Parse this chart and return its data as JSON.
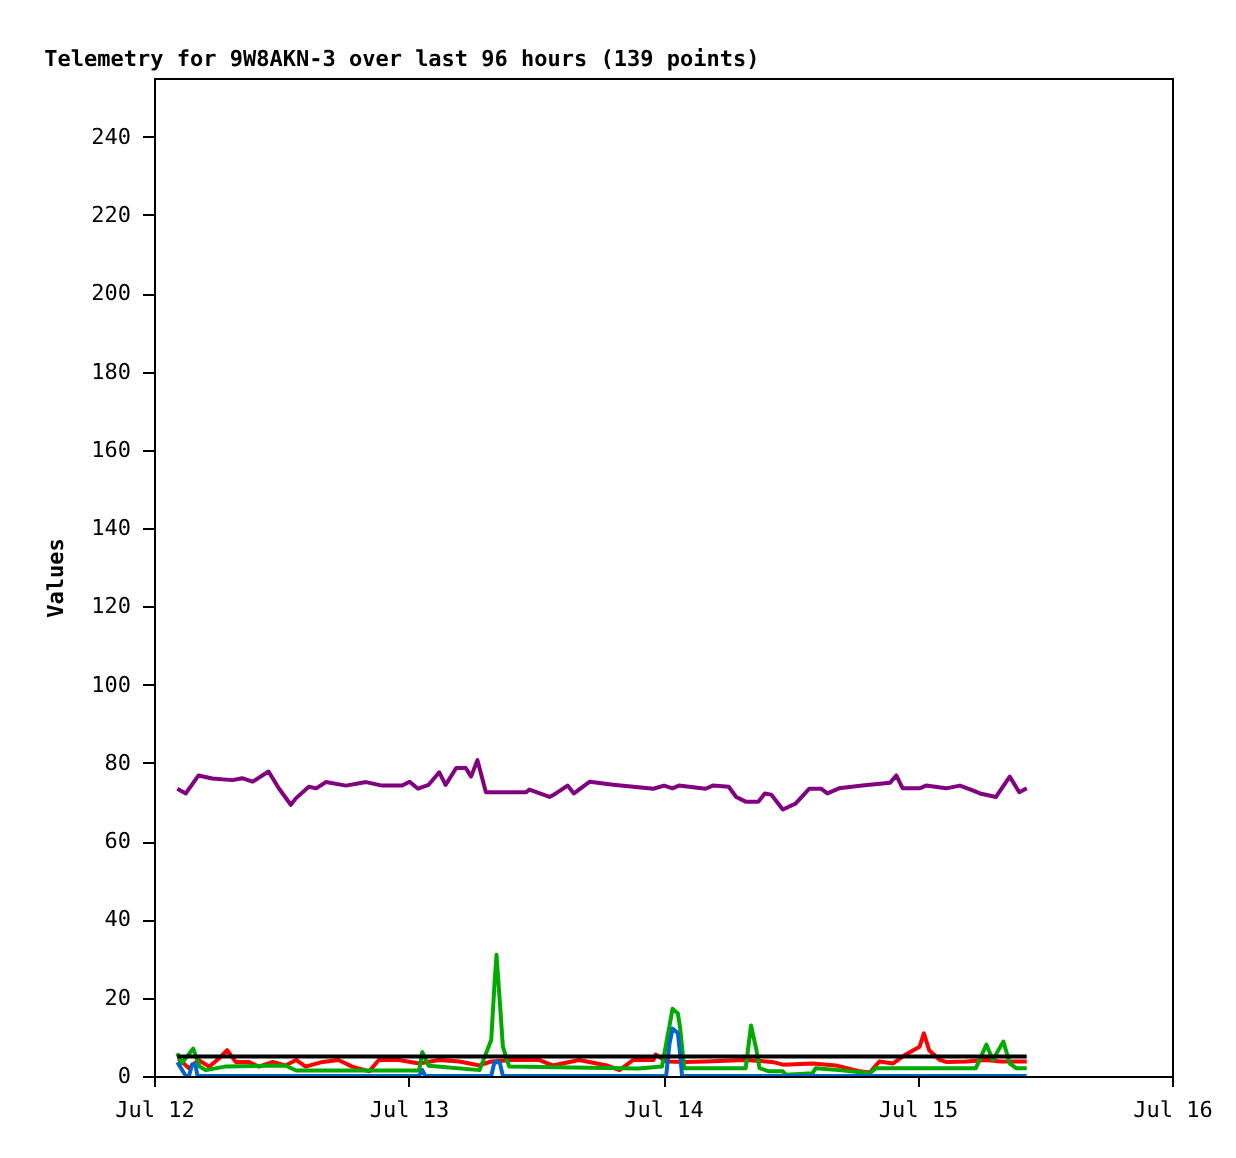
{
  "chart_data": {
    "type": "line",
    "title": "Telemetry for 9W8AKN-3 over last 96 hours (139 points)",
    "ylabel": "Values",
    "xlim": [
      "--07-12",
      "--07-16"
    ],
    "xticks": [
      {
        "value": "--07-12",
        "label": "Jul 12"
      },
      {
        "value": "--07-13",
        "label": "Jul 13"
      },
      {
        "value": "--07-14",
        "label": "Jul 14"
      },
      {
        "value": "--07-15",
        "label": "Jul 15"
      },
      {
        "value": "--07-16",
        "label": "Jul 16"
      }
    ],
    "ylim": [
      0,
      255
    ],
    "yticks": [
      0,
      20,
      40,
      60,
      80,
      100,
      120,
      140,
      160,
      180,
      200,
      220,
      240
    ],
    "series": [
      {
        "color": "#800080",
        "x": [
          "--07-12T02:12",
          "--07-12T03:00",
          "--07-12T04:12",
          "--07-12T05:30",
          "--07-12T07:24",
          "--07-12T08:18",
          "--07-12T09:18",
          "--07-12T10:48",
          "--07-12T11:48",
          "--07-12T12:54",
          "--07-12T13:24",
          "--07-12T14:36",
          "--07-12T15:18",
          "--07-12T16:12",
          "--07-12T18:06",
          "--07-12T20:00",
          "--07-12T21:30",
          "--07-12T23:24",
          "--07-13T00:06",
          "--07-13T00:54",
          "--07-13T01:54",
          "--07-13T02:54",
          "--07-13T03:30",
          "--07-13T04:30",
          "--07-13T05:24",
          "--07-13T05:54",
          "--07-13T06:30",
          "--07-13T07:18",
          "--07-13T11:06",
          "--07-13T11:24",
          "--07-13T13:18",
          "--07-13T13:54",
          "--07-13T15:00",
          "--07-13T15:36",
          "--07-13T17:06",
          "--07-13T19:18",
          "--07-13T21:12",
          "--07-13T23:06",
          "--07-14T00:06",
          "--07-14T00:54",
          "--07-14T01:30",
          "--07-14T04:00",
          "--07-14T04:42",
          "--07-14T06:12",
          "--07-14T06:54",
          "--07-14T07:48",
          "--07-14T09:00",
          "--07-14T09:36",
          "--07-14T10:12",
          "--07-14T11:18",
          "--07-14T12:30",
          "--07-14T13:48",
          "--07-14T14:54",
          "--07-14T15:30",
          "--07-14T16:36",
          "--07-14T18:48",
          "--07-14T21:24",
          "--07-14T22:00",
          "--07-14T22:36",
          "--07-15T00:12",
          "--07-15T00:48",
          "--07-15T02:42",
          "--07-15T04:00",
          "--07-15T05:12",
          "--07-15T05:54",
          "--07-15T07:24",
          "--07-15T08:42",
          "--07-15T09:36",
          "--07-15T10:18"
        ],
        "values": [
          73.4,
          72.2,
          76.8,
          76,
          75.6,
          76.1,
          75.2,
          77.8,
          73.4,
          69.3,
          71,
          73.9,
          73.5,
          75.1,
          74.2,
          75.1,
          74.2,
          74.2,
          75.2,
          73.4,
          74.4,
          77.6,
          74.4,
          78.7,
          78.7,
          76.5,
          80.7,
          72.5,
          72.5,
          73.2,
          71.3,
          72.2,
          74.2,
          72.2,
          75.2,
          74.4,
          73.9,
          73.4,
          74.2,
          73.5,
          74.2,
          73.4,
          74.2,
          73.9,
          71.3,
          70.1,
          70.1,
          72.2,
          71.9,
          68.1,
          69.6,
          73.4,
          73.4,
          72.2,
          73.5,
          74.2,
          74.9,
          76.8,
          73.5,
          73.5,
          74.2,
          73.5,
          74.2,
          73,
          72.2,
          71.3,
          76.5,
          72.5,
          73.5
        ]
      },
      {
        "color": "#ff0000",
        "x": [
          "--07-12T02:18",
          "--07-12T03:18",
          "--07-12T04:12",
          "--07-12T05:12",
          "--07-12T06:06",
          "--07-12T06:54",
          "--07-12T07:42",
          "--07-12T08:54",
          "--07-12T09:54",
          "--07-12T11:12",
          "--07-12T12:24",
          "--07-12T13:24",
          "--07-12T14:18",
          "--07-12T15:54",
          "--07-12T17:24",
          "--07-12T18:42",
          "--07-12T20:18",
          "--07-12T21:12",
          "--07-12T23:06",
          "--07-13T01:00",
          "--07-13T02:54",
          "--07-13T04:48",
          "--07-13T06:42",
          "--07-13T07:48",
          "--07-13T09:48",
          "--07-13T12:18",
          "--07-13T13:36",
          "--07-13T16:06",
          "--07-13T18:42",
          "--07-13T19:54",
          "--07-13T21:12",
          "--07-13T23:06",
          "--07-13T23:18",
          "--07-14T00:18",
          "--07-14T02:06",
          "--07-14T04:00",
          "--07-14T07:48",
          "--07-14T10:18",
          "--07-14T11:18",
          "--07-14T14:06",
          "--07-14T16:18",
          "--07-14T18:30",
          "--07-14T19:30",
          "--07-14T20:24",
          "--07-14T21:42",
          "--07-14T22:54",
          "--07-15T00:12",
          "--07-15T00:36",
          "--07-15T01:06",
          "--07-15T02:06",
          "--07-15T02:42",
          "--07-15T04:36",
          "--07-15T06:30",
          "--07-15T07:48",
          "--07-15T10:18"
        ],
        "values": [
          4.4,
          2.0,
          4.1,
          2.4,
          4.4,
          6.6,
          3.6,
          3.6,
          2.4,
          3.6,
          2.7,
          4.1,
          2.4,
          3.6,
          4.1,
          2.4,
          1.2,
          4.1,
          4.1,
          3.2,
          4.1,
          3.7,
          2.7,
          3.7,
          4.1,
          4.1,
          2.7,
          4.1,
          2.7,
          1.5,
          4.1,
          4.1,
          5.5,
          3.7,
          3.6,
          3.7,
          4.1,
          3.6,
          2.9,
          3.2,
          2.7,
          1.2,
          0.9,
          3.7,
          3.2,
          5.5,
          7.5,
          10.9,
          6.6,
          4.1,
          3.6,
          3.7,
          4.1,
          3.7,
          3.7
        ]
      },
      {
        "color": "#00aa00",
        "x": [
          "--07-12T02:12",
          "--07-12T02:36",
          "--07-12T03:42",
          "--07-12T04:18",
          "--07-12T04:54",
          "--07-12T06:42",
          "--07-12T12:24",
          "--07-12T13:24",
          "--07-13T01:00",
          "--07-13T01:18",
          "--07-13T01:54",
          "--07-13T06:42",
          "--07-13T07:48",
          "--07-13T08:06",
          "--07-13T08:18",
          "--07-13T08:36",
          "--07-13T08:54",
          "--07-13T09:30",
          "--07-13T21:42",
          "--07-13T23:54",
          "--07-14T00:36",
          "--07-14T00:54",
          "--07-14T01:24",
          "--07-14T01:36",
          "--07-14T02:00",
          "--07-14T07:48",
          "--07-14T08:18",
          "--07-14T08:48",
          "--07-14T09:06",
          "--07-14T10:00",
          "--07-14T11:18",
          "--07-14T11:36",
          "--07-14T14:06",
          "--07-14T14:24",
          "--07-14T16:36",
          "--07-14T19:30",
          "--07-14T20:06",
          "--07-15T05:30",
          "--07-15T06:30",
          "--07-15T07:06",
          "--07-15T08:06",
          "--07-15T08:42",
          "--07-15T09:18",
          "--07-15T10:18"
        ],
        "values": [
          5.8,
          3.2,
          7.0,
          2.4,
          1.5,
          2.4,
          2.7,
          1.4,
          1.4,
          6.1,
          2.6,
          1.5,
          9.2,
          23,
          31,
          19.4,
          7.5,
          2.4,
          1.9,
          2.4,
          12.6,
          17.2,
          16,
          12.6,
          2,
          2,
          12.9,
          6.8,
          2,
          1.2,
          1.2,
          0.3,
          0.7,
          2,
          1.5,
          0.7,
          2,
          2,
          8,
          4.1,
          8.8,
          3.2,
          2,
          2
        ]
      },
      {
        "color": "#0066cc",
        "x": [
          "--07-12T02:12",
          "--07-12T03:00",
          "--07-12T03:18",
          "--07-12T03:36",
          "--07-12T03:54",
          "--07-12T04:06",
          "--07-13T01:00",
          "--07-13T01:18",
          "--07-13T01:36",
          "--07-13T07:48",
          "--07-13T08:06",
          "--07-13T08:36",
          "--07-13T08:54",
          "--07-14T00:18",
          "--07-14T00:36",
          "--07-14T00:54",
          "--07-14T01:24",
          "--07-14T01:36",
          "--07-14T01:48",
          "--07-15T10:18"
        ],
        "values": [
          3.5,
          0,
          0,
          3,
          3,
          0,
          0,
          1.5,
          0,
          0,
          3.5,
          3.5,
          0,
          0,
          8,
          12.1,
          11,
          6,
          0,
          0
        ]
      },
      {
        "color": "#000000",
        "x": [
          "--07-12T02:12",
          "--07-15T10:18"
        ],
        "values": [
          5,
          5
        ]
      }
    ]
  }
}
